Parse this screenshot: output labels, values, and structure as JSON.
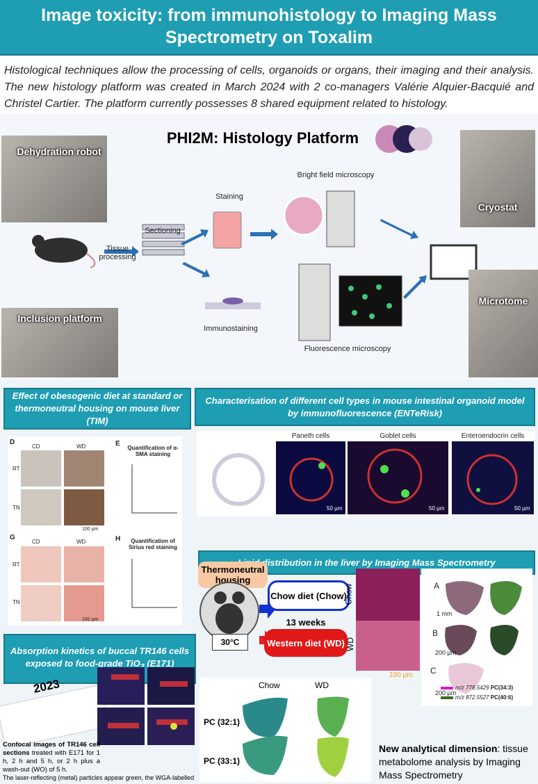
{
  "header": {
    "title": "Image toxicity: from immunohistology to Imaging Mass Spectrometry on Toxalim"
  },
  "intro": "Histological techniques allow the processing of cells, organoids or organs, their imaging and their analysis. The new histology platform was created in March 2024 with 2 co-managers Valérie Alquier-Bacquié and Christel Cartier. The platform currently possesses 8 shared equipment related to histology.",
  "platform": {
    "title": "PHI2M: Histology Platform",
    "photos": [
      "Dehydration robot",
      "Inclusion platform",
      "Cryostat",
      "Microtome"
    ],
    "steps": [
      "Sectioning",
      "Tissue processing",
      "Staining",
      "Immunostaining",
      "Bright field microscopy",
      "Fluorescence microscopy"
    ]
  },
  "liver": {
    "title": "Effect of obesogenic diet at standard or thermoneutral housing on mouse liver (TIM)",
    "panels": [
      "D",
      "E",
      "G",
      "H"
    ],
    "groups": [
      "CD",
      "WD"
    ],
    "housing": [
      "RT",
      "TN"
    ],
    "charts": [
      "Quantification of α-SMA staining",
      "Quantification of Sirius red staining"
    ],
    "scale": "100 µm"
  },
  "organoid": {
    "title": "Characterisation of different cell types in mouse intestinal organoid model by immunofluorescence (ENTeRisk)",
    "cells": [
      "Paneth cells",
      "Goblet cells",
      "Enteroendocrin cells"
    ],
    "scale": "50 µm"
  },
  "absorption": {
    "title": "Absorption kinetics of buccal TR146 cells exposed to food-grade TiO",
    "title_sub": "2",
    "title_end": "(E171)",
    "caption_bold": "Confocal images of TR146 cell sections",
    "caption": "treated with E171 for 1 h, 2 h and 5 h, or 2 h plus a wash-out (WO) of 5 h.",
    "caption2": "The laser-reflecting (metal) particles appear green, the WGA-labelled",
    "year": "2023"
  },
  "lipid": {
    "title": "Lipid distribution in the liver by Imaging Mass Spectrometry",
    "housing": "Thermoneutral housing",
    "temperature": "30°C",
    "chow": "Chow diet (Chow)",
    "duration": "13 weeks",
    "western": "Western diet (WD)",
    "image_labels": [
      "Chow",
      "WD"
    ],
    "scale": "100 µm",
    "panels": [
      "A",
      "B",
      "C"
    ],
    "scales": [
      "1 mm",
      "200 µm",
      "200 µm"
    ],
    "legend": [
      {
        "mz": "m/z 778.5429",
        "pc": "PC(34:3)"
      },
      {
        "mz": "m/z 872.5527",
        "pc": "PC(40:6)"
      }
    ],
    "pc_columns": [
      "Chow",
      "WD"
    ],
    "pc_rows": [
      "PC (32:1)",
      "PC (33:1)"
    ],
    "conclusion_bold": "New analytical dimension",
    "conclusion": "tissue metabolome analysis by Imaging Mass Spectrometry"
  }
}
